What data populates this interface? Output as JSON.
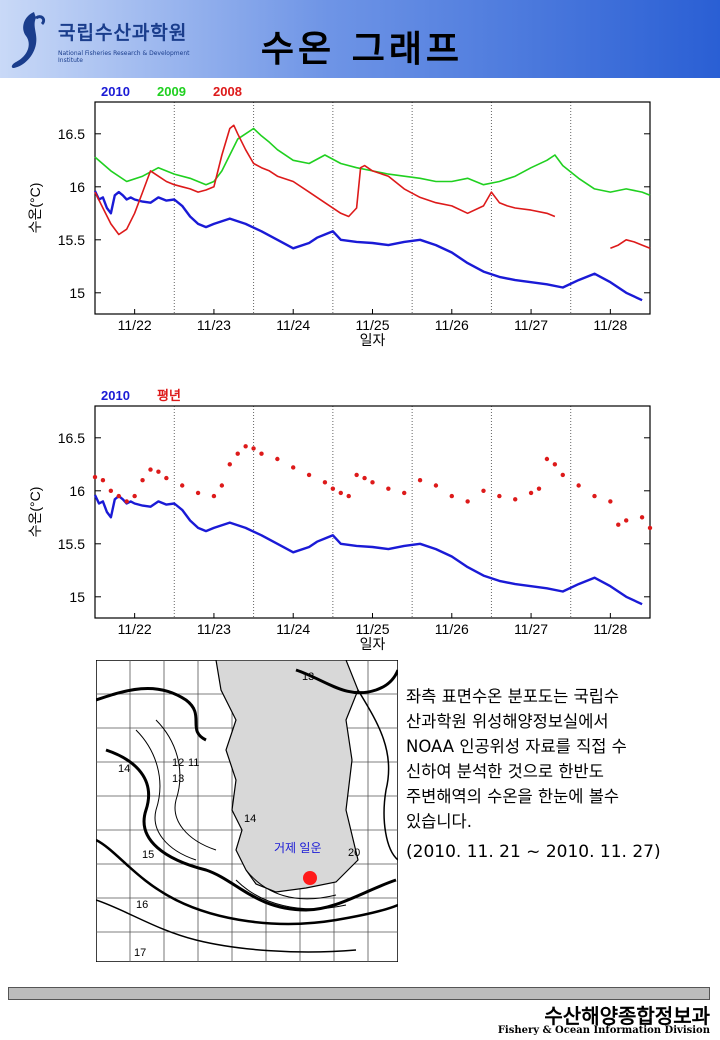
{
  "header": {
    "title": "수온 그래프",
    "logo_name": "국립수산과학원",
    "logo_sub": "National Fisheries Research & Development Institute"
  },
  "chart_data": [
    {
      "type": "line",
      "ylabel": "수온(°C)",
      "xlabel": "일자",
      "ylim": [
        14.8,
        16.8
      ],
      "yticks": [
        "15",
        "15.5",
        "16",
        "16.5"
      ],
      "xticks": [
        "11/22",
        "11/23",
        "11/24",
        "11/25",
        "11/26",
        "11/27",
        "11/28"
      ],
      "x_range": [
        21.5,
        28.5
      ],
      "series": [
        {
          "name": "2010",
          "color": "#1a1ad6",
          "x": [
            21.5,
            21.55,
            21.6,
            21.65,
            21.7,
            21.75,
            21.8,
            21.85,
            21.9,
            21.95,
            22.0,
            22.1,
            22.2,
            22.3,
            22.4,
            22.5,
            22.6,
            22.7,
            22.8,
            22.9,
            23.0,
            23.2,
            23.4,
            23.6,
            23.8,
            24.0,
            24.2,
            24.3,
            24.4,
            24.5,
            24.6,
            24.8,
            25.0,
            25.2,
            25.4,
            25.6,
            25.8,
            26.0,
            26.2,
            26.4,
            26.6,
            26.8,
            27.0,
            27.2,
            27.4,
            27.6,
            27.8,
            28.0,
            28.2,
            28.4
          ],
          "values": [
            15.96,
            15.88,
            15.9,
            15.8,
            15.75,
            15.92,
            15.95,
            15.92,
            15.88,
            15.9,
            15.88,
            15.86,
            15.85,
            15.9,
            15.87,
            15.88,
            15.82,
            15.72,
            15.65,
            15.62,
            15.65,
            15.7,
            15.65,
            15.58,
            15.5,
            15.42,
            15.47,
            15.52,
            15.55,
            15.58,
            15.5,
            15.48,
            15.47,
            15.45,
            15.48,
            15.5,
            15.45,
            15.38,
            15.28,
            15.2,
            15.15,
            15.12,
            15.1,
            15.08,
            15.05,
            15.12,
            15.18,
            15.1,
            15.0,
            14.93
          ]
        },
        {
          "name": "2009",
          "color": "#20d020",
          "x": [
            21.5,
            21.7,
            21.9,
            22.1,
            22.3,
            22.5,
            22.7,
            22.9,
            23.0,
            23.1,
            23.2,
            23.3,
            23.4,
            23.5,
            23.6,
            23.7,
            23.8,
            24.0,
            24.2,
            24.4,
            24.6,
            24.8,
            25.0,
            25.2,
            25.4,
            25.6,
            25.8,
            26.0,
            26.2,
            26.4,
            26.6,
            26.8,
            27.0,
            27.2,
            27.3,
            27.4,
            27.6,
            27.8,
            28.0,
            28.2,
            28.4,
            28.5
          ],
          "values": [
            16.28,
            16.15,
            16.05,
            16.1,
            16.18,
            16.12,
            16.08,
            16.02,
            16.05,
            16.15,
            16.3,
            16.45,
            16.5,
            16.55,
            16.48,
            16.42,
            16.35,
            16.25,
            16.22,
            16.3,
            16.22,
            16.18,
            16.15,
            16.12,
            16.1,
            16.08,
            16.05,
            16.05,
            16.08,
            16.02,
            16.05,
            16.1,
            16.18,
            16.25,
            16.3,
            16.2,
            16.08,
            15.98,
            15.95,
            15.98,
            15.95,
            15.92
          ]
        },
        {
          "name": "2008",
          "color": "#dd1a1a",
          "x": [
            21.5,
            21.6,
            21.7,
            21.8,
            21.9,
            22.0,
            22.1,
            22.2,
            22.3,
            22.4,
            22.5,
            22.6,
            22.7,
            22.8,
            22.9,
            23.0,
            23.1,
            23.2,
            23.25,
            23.3,
            23.4,
            23.5,
            23.6,
            23.7,
            23.8,
            24.0,
            24.2,
            24.4,
            24.6,
            24.7,
            24.8,
            24.85,
            24.9,
            25.0,
            25.2,
            25.4,
            25.6,
            25.8,
            26.0,
            26.2,
            26.4,
            26.5,
            26.6,
            26.7,
            26.8,
            27.0,
            27.2,
            27.3,
            null,
            28.0,
            28.1,
            28.2,
            28.3,
            28.4,
            28.5
          ],
          "values": [
            15.95,
            15.8,
            15.65,
            15.55,
            15.6,
            15.75,
            15.95,
            16.15,
            16.1,
            16.05,
            16.02,
            16.0,
            15.98,
            15.95,
            15.97,
            16.0,
            16.3,
            16.55,
            16.58,
            16.5,
            16.35,
            16.22,
            16.18,
            16.15,
            16.1,
            16.05,
            15.95,
            15.85,
            15.75,
            15.72,
            15.8,
            16.18,
            16.2,
            16.15,
            16.1,
            15.98,
            15.9,
            15.85,
            15.82,
            15.75,
            15.82,
            15.95,
            15.85,
            15.82,
            15.8,
            15.78,
            15.75,
            15.72,
            null,
            15.42,
            15.45,
            15.5,
            15.48,
            15.45,
            15.42
          ]
        }
      ]
    },
    {
      "type": "line",
      "ylabel": "수온(°C)",
      "xlabel": "일자",
      "ylim": [
        14.8,
        16.8
      ],
      "yticks": [
        "15",
        "15.5",
        "16",
        "16.5"
      ],
      "xticks": [
        "11/22",
        "11/23",
        "11/24",
        "11/25",
        "11/26",
        "11/27",
        "11/28"
      ],
      "x_range": [
        21.5,
        28.5
      ],
      "series": [
        {
          "name": "2010",
          "color": "#1a1ad6",
          "x": [
            21.5,
            21.55,
            21.6,
            21.65,
            21.7,
            21.75,
            21.8,
            21.85,
            21.9,
            21.95,
            22.0,
            22.1,
            22.2,
            22.3,
            22.4,
            22.5,
            22.6,
            22.7,
            22.8,
            22.9,
            23.0,
            23.2,
            23.4,
            23.6,
            23.8,
            24.0,
            24.2,
            24.3,
            24.4,
            24.5,
            24.6,
            24.8,
            25.0,
            25.2,
            25.4,
            25.6,
            25.8,
            26.0,
            26.2,
            26.4,
            26.6,
            26.8,
            27.0,
            27.2,
            27.4,
            27.6,
            27.8,
            28.0,
            28.2,
            28.4
          ],
          "values": [
            15.96,
            15.88,
            15.9,
            15.8,
            15.75,
            15.92,
            15.95,
            15.92,
            15.88,
            15.9,
            15.88,
            15.86,
            15.85,
            15.9,
            15.87,
            15.88,
            15.82,
            15.72,
            15.65,
            15.62,
            15.65,
            15.7,
            15.65,
            15.58,
            15.5,
            15.42,
            15.47,
            15.52,
            15.55,
            15.58,
            15.5,
            15.48,
            15.47,
            15.45,
            15.48,
            15.5,
            15.45,
            15.38,
            15.28,
            15.2,
            15.15,
            15.12,
            15.1,
            15.08,
            15.05,
            15.12,
            15.18,
            15.1,
            15.0,
            14.93
          ]
        },
        {
          "name": "평년",
          "color": "#dd1a1a",
          "x": [
            21.5,
            21.6,
            21.7,
            21.8,
            21.9,
            22.0,
            22.1,
            22.2,
            22.3,
            22.4,
            22.6,
            22.8,
            23.0,
            23.1,
            23.2,
            23.3,
            23.4,
            23.5,
            23.6,
            23.8,
            24.0,
            24.2,
            24.4,
            24.5,
            24.6,
            24.7,
            24.8,
            24.9,
            25.0,
            25.2,
            25.4,
            25.6,
            25.8,
            26.0,
            26.2,
            26.4,
            26.6,
            26.8,
            27.0,
            27.1,
            27.2,
            27.3,
            27.4,
            27.6,
            27.8,
            28.0,
            28.1,
            28.2,
            28.4,
            28.5
          ],
          "values": [
            16.13,
            16.1,
            16.0,
            15.95,
            15.9,
            15.95,
            16.1,
            16.2,
            16.18,
            16.12,
            16.05,
            15.98,
            15.95,
            16.05,
            16.25,
            16.35,
            16.42,
            16.4,
            16.35,
            16.3,
            16.22,
            16.15,
            16.08,
            16.02,
            15.98,
            15.95,
            16.15,
            16.12,
            16.08,
            16.02,
            15.98,
            16.1,
            16.05,
            15.95,
            15.9,
            16.0,
            15.95,
            15.92,
            15.98,
            16.02,
            16.3,
            16.25,
            16.15,
            16.05,
            15.95,
            15.9,
            15.68,
            15.72,
            15.75,
            15.65
          ]
        }
      ]
    }
  ],
  "map": {
    "location_label": "거제 일운",
    "isotherm_labels": [
      "13",
      "14",
      "12",
      "11",
      "13",
      "14",
      "15",
      "16",
      "17",
      "20"
    ]
  },
  "description": {
    "lines": [
      "좌측 표면수온 분포도는 국립수",
      "산과학원 위성해양정보실에서",
      "NOAA 인공위성 자료를 직접 수",
      "신하여 분석한 것으로  한반도",
      "주변해역의 수온을 한눈에 볼수",
      "있습니다."
    ],
    "date_range": "(2010. 11. 21 ~ 2010. 11. 27)"
  },
  "footer": {
    "title": "수산해양종합정보과",
    "subtitle": "Fishery & Ocean Information Division"
  },
  "colors": {
    "series_2010": "#1a1ad6",
    "series_2009": "#20d020",
    "series_2008": "#dd1a1a"
  }
}
